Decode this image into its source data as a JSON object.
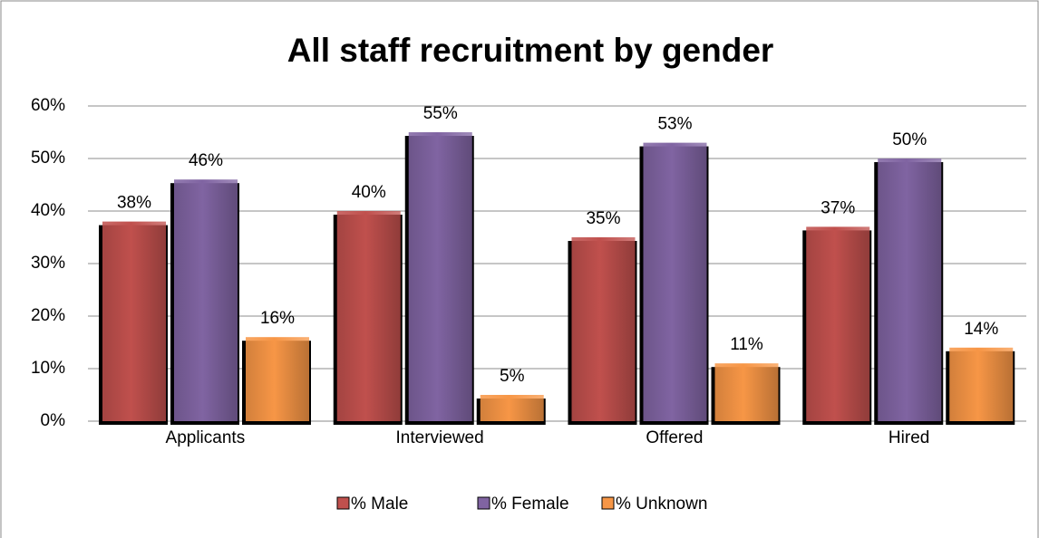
{
  "chart_data": {
    "type": "bar",
    "title": "All staff recruitment by gender",
    "categories": [
      "Applicants",
      "Interviewed",
      "Offered",
      "Hired"
    ],
    "series": [
      {
        "name": "% Male",
        "color": "#c0504d",
        "values": [
          38,
          40,
          35,
          37
        ],
        "value_labels": [
          "38%",
          "40%",
          "35%",
          "37%"
        ]
      },
      {
        "name": "% Female",
        "color": "#8064a2",
        "values": [
          46,
          55,
          53,
          50
        ],
        "value_labels": [
          "46%",
          "55%",
          "53%",
          "50%"
        ]
      },
      {
        "name": "% Unknown",
        "color": "#f79646",
        "values": [
          16,
          5,
          11,
          14
        ],
        "value_labels": [
          "16%",
          "5%",
          "11%",
          "14%"
        ]
      }
    ],
    "ylim": [
      0,
      60
    ],
    "yticks": [
      {
        "value": 0,
        "label": "0%"
      },
      {
        "value": 10,
        "label": "10%"
      },
      {
        "value": 20,
        "label": "20%"
      },
      {
        "value": 30,
        "label": "30%"
      },
      {
        "value": 40,
        "label": "40%"
      },
      {
        "value": 50,
        "label": "50%"
      },
      {
        "value": 60,
        "label": "60%"
      }
    ],
    "grid": true,
    "legend": "bottom"
  }
}
